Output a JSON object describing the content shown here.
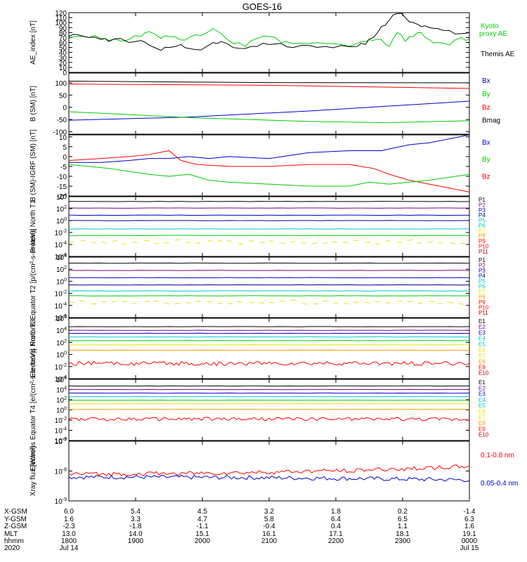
{
  "title": "GOES-16",
  "colors": {
    "black": "#000000",
    "red": "#ff0000",
    "green": "#00cc00",
    "blue": "#0000cc",
    "cyan": "#00c8c8",
    "orange": "#ff9900",
    "yellow": "#e6e600",
    "navy": "#000099",
    "purple": "#800080",
    "darkred": "#b00000"
  },
  "chart_data": [
    {
      "type": "line",
      "name": "ae_index",
      "ylabel": "AE_index [nT]",
      "ylim": [
        0,
        120
      ],
      "yticks": [
        "0",
        "10",
        "20",
        "30",
        "40",
        "50",
        "60",
        "70",
        "80",
        "90",
        "100",
        "110",
        "120"
      ],
      "legend": [
        {
          "label": "Kyoto",
          "color": "#00cc00"
        },
        {
          "label": "proxy AE",
          "color": "#00cc00"
        },
        {
          "label": "Themis AE",
          "color": "#000000"
        }
      ],
      "series": [
        {
          "name": "Kyoto proxy AE",
          "color": "#00cc00",
          "x": [
            0.0,
            0.02,
            0.05,
            0.08,
            0.1,
            0.13,
            0.15,
            0.18,
            0.2,
            0.23,
            0.25,
            0.28,
            0.3,
            0.33,
            0.36,
            0.38,
            0.41,
            0.44,
            0.47,
            0.5,
            0.53,
            0.56,
            0.6,
            0.64,
            0.68,
            0.72,
            0.74,
            0.76,
            0.78,
            0.8,
            0.82,
            0.84,
            0.86,
            0.88,
            0.9,
            0.92,
            0.95,
            0.98,
            1.0
          ],
          "y": [
            68,
            72,
            70,
            68,
            64,
            63,
            66,
            72,
            82,
            68,
            72,
            65,
            70,
            74,
            88,
            78,
            58,
            52,
            68,
            72,
            60,
            58,
            58,
            58,
            56,
            58,
            62,
            64,
            66,
            52,
            80,
            62,
            72,
            80,
            66,
            60,
            55,
            70,
            66
          ]
        },
        {
          "name": "Themis AE",
          "color": "#000000",
          "x": [
            0.0,
            0.02,
            0.05,
            0.08,
            0.1,
            0.13,
            0.15,
            0.18,
            0.2,
            0.23,
            0.25,
            0.28,
            0.3,
            0.33,
            0.36,
            0.38,
            0.41,
            0.44,
            0.47,
            0.5,
            0.53,
            0.56,
            0.6,
            0.64,
            0.68,
            0.72,
            0.74,
            0.76,
            0.78,
            0.8,
            0.82,
            0.84,
            0.86,
            0.88,
            0.9,
            0.92,
            0.95,
            0.98,
            1.0
          ],
          "y": [
            72,
            76,
            70,
            66,
            62,
            68,
            60,
            64,
            55,
            44,
            50,
            56,
            48,
            45,
            60,
            62,
            50,
            48,
            52,
            56,
            58,
            50,
            54,
            52,
            54,
            52,
            56,
            70,
            92,
            105,
            118,
            110,
            100,
            92,
            90,
            88,
            84,
            78,
            80
          ]
        }
      ]
    },
    {
      "type": "line",
      "name": "b_sm",
      "ylabel": "B (SM) [nT]",
      "ylim": [
        -110,
        140
      ],
      "yticks": [
        "-100",
        "-50",
        "0",
        "50",
        "100"
      ],
      "ytick_values": [
        -100,
        -50,
        0,
        50,
        100
      ],
      "legend": [
        {
          "label": "Bx",
          "color": "#0000cc"
        },
        {
          "label": "By",
          "color": "#00cc00"
        },
        {
          "label": "Bz",
          "color": "#ff0000"
        },
        {
          "label": "Bmag",
          "color": "#000000"
        }
      ],
      "series": [
        {
          "name": "Bmag",
          "color": "#000000",
          "x": [
            0,
            0.5,
            1
          ],
          "y": [
            107,
            101,
            100
          ]
        },
        {
          "name": "Bz",
          "color": "#ff0000",
          "x": [
            0,
            0.5,
            1
          ],
          "y": [
            95,
            90,
            77
          ]
        },
        {
          "name": "Bx",
          "color": "#0000cc",
          "x": [
            0,
            0.3,
            0.6,
            1
          ],
          "y": [
            -53,
            -40,
            -15,
            25
          ]
        },
        {
          "name": "By",
          "color": "#00cc00",
          "x": [
            0,
            0.3,
            0.6,
            0.8,
            1
          ],
          "y": [
            -18,
            -42,
            -58,
            -63,
            -55
          ]
        }
      ]
    },
    {
      "type": "line",
      "name": "b_sm_minus_igrf",
      "ylabel": "B (SM)-IGRF (SM) [nT]",
      "ylim": [
        -20,
        11
      ],
      "yticks": [
        "-20",
        "-15",
        "-10",
        "-5",
        "0",
        "5",
        "10"
      ],
      "ytick_values": [
        -20,
        -15,
        -10,
        -5,
        0,
        5,
        10
      ],
      "legend": [
        {
          "label": "Bx",
          "color": "#0000cc"
        },
        {
          "label": "By",
          "color": "#00cc00"
        },
        {
          "label": "Bz",
          "color": "#ff0000"
        }
      ],
      "series": [
        {
          "name": "Bx",
          "color": "#0000cc",
          "x": [
            0,
            0.08,
            0.15,
            0.2,
            0.25,
            0.3,
            0.35,
            0.4,
            0.5,
            0.6,
            0.7,
            0.78,
            0.85,
            0.9,
            0.95,
            1.0
          ],
          "y": [
            -3,
            -3,
            -2,
            -1,
            -1,
            0,
            -1,
            0,
            -1,
            2,
            3,
            3,
            6,
            7,
            9,
            11
          ]
        },
        {
          "name": "Bz",
          "color": "#ff0000",
          "x": [
            0,
            0.08,
            0.15,
            0.2,
            0.25,
            0.28,
            0.32,
            0.4,
            0.5,
            0.6,
            0.7,
            0.76,
            0.8,
            0.85,
            0.9,
            0.95,
            1.0
          ],
          "y": [
            -2,
            -1,
            0,
            1,
            3,
            -2,
            -4,
            -5,
            -5,
            -4,
            -4,
            -6,
            -9,
            -12,
            -14,
            -16,
            -18
          ]
        },
        {
          "name": "By",
          "color": "#00cc00",
          "x": [
            0,
            0.1,
            0.2,
            0.25,
            0.3,
            0.35,
            0.4,
            0.5,
            0.6,
            0.7,
            0.75,
            0.8,
            0.9,
            1.0
          ],
          "y": [
            -4,
            -6,
            -9,
            -10,
            -9,
            -12,
            -13,
            -14,
            -15,
            -15,
            -13,
            -14,
            -12,
            -9
          ]
        }
      ]
    },
    {
      "type": "line",
      "name": "protons_north_t1",
      "ylabel": "Protons North T1",
      "yscale": "log",
      "ylim": [
        -6,
        4
      ],
      "yticks": [
        "10^-6",
        "10^-4",
        "10^-2",
        "10^0",
        "10^2",
        "10^4"
      ],
      "legend": [
        {
          "label": "P1",
          "color": "#000000"
        },
        {
          "label": "P2",
          "color": "#800080"
        },
        {
          "label": "P3",
          "color": "#0000cc"
        },
        {
          "label": "P4",
          "color": "#000099"
        },
        {
          "label": "P5",
          "color": "#00c8c8"
        },
        {
          "label": "P6",
          "color": "#00c8c8"
        },
        {
          "label": "P7",
          "color": "#e6e600"
        },
        {
          "label": "P8",
          "color": "#ff9900"
        },
        {
          "label": "P9",
          "color": "#ff0000"
        },
        {
          "label": "P10",
          "color": "#ff0000"
        },
        {
          "label": "P11",
          "color": "#b00000"
        }
      ],
      "levels": [
        {
          "label": "P1",
          "color": "#000000",
          "log": 3.2
        },
        {
          "label": "P2",
          "color": "#800080",
          "log": 2.1
        },
        {
          "label": "P3",
          "color": "#0000cc",
          "log": 0.9
        },
        {
          "label": "P4",
          "color": "#000099",
          "log": 0.0
        },
        {
          "label": "P5",
          "color": "#00c8c8",
          "log": -1.4
        },
        {
          "label": "P6",
          "color": "#00cc00",
          "log": -2.5
        },
        {
          "label": "P7",
          "color": "#e6e600",
          "log": -3.6,
          "sparse": true
        }
      ]
    },
    {
      "type": "line",
      "name": "protons_equator_t2",
      "ylabel": "Protons Equator T2 [p/(cm²-s-sr-keV)]",
      "yscale": "log",
      "ylim": [
        -6,
        4
      ],
      "yticks": [
        "10^-6",
        "10^-4",
        "10^-2",
        "10^0",
        "10^2",
        "10^4"
      ],
      "legend": [
        {
          "label": "P1",
          "color": "#000000"
        },
        {
          "label": "P2",
          "color": "#800080"
        },
        {
          "label": "P3",
          "color": "#0000cc"
        },
        {
          "label": "P4",
          "color": "#000099"
        },
        {
          "label": "P5",
          "color": "#00c8c8"
        },
        {
          "label": "P6",
          "color": "#00c8c8"
        },
        {
          "label": "P7",
          "color": "#e6e600"
        },
        {
          "label": "P8",
          "color": "#ff9900"
        },
        {
          "label": "P9",
          "color": "#ff0000"
        },
        {
          "label": "P10",
          "color": "#ff0000"
        },
        {
          "label": "P11",
          "color": "#b00000"
        }
      ],
      "levels": [
        {
          "label": "P1",
          "color": "#000000",
          "log": 3.0
        },
        {
          "label": "P2",
          "color": "#800080",
          "log": 1.8
        },
        {
          "label": "P3",
          "color": "#0000cc",
          "log": 0.6
        },
        {
          "label": "P4",
          "color": "#000099",
          "log": -0.6
        },
        {
          "label": "P5",
          "color": "#00c8c8",
          "log": -1.6
        },
        {
          "label": "P6",
          "color": "#00cc00",
          "log": -2.4
        },
        {
          "label": "P7",
          "color": "#e6e600",
          "log": -3.5,
          "sparse": true
        }
      ]
    },
    {
      "type": "line",
      "name": "electrons_north_t3",
      "ylabel": "Electrons North T3",
      "yscale": "log",
      "ylim": [
        -4,
        6
      ],
      "yticks": [
        "10^-4",
        "10^-2",
        "10^0",
        "10^2",
        "10^4",
        "10^6"
      ],
      "legend": [
        {
          "label": "E1",
          "color": "#000000"
        },
        {
          "label": "E2",
          "color": "#800080"
        },
        {
          "label": "E3",
          "color": "#0000cc"
        },
        {
          "label": "E4",
          "color": "#00c8c8"
        },
        {
          "label": "E5",
          "color": "#00c8c8"
        },
        {
          "label": "E6",
          "color": "#e6e600"
        },
        {
          "label": "E7",
          "color": "#e6e600"
        },
        {
          "label": "E8",
          "color": "#ff9900"
        },
        {
          "label": "E9",
          "color": "#ff0000"
        },
        {
          "label": "E10",
          "color": "#b00000"
        }
      ],
      "levels": [
        {
          "label": "E1",
          "color": "#000000",
          "log": 4.6
        },
        {
          "label": "E2",
          "color": "#800080",
          "log": 4.0
        },
        {
          "label": "E3",
          "color": "#0000cc",
          "log": 3.5
        },
        {
          "label": "E4",
          "color": "#00c8c8",
          "log": 2.9
        },
        {
          "label": "E5",
          "color": "#00cc00",
          "log": 2.3
        },
        {
          "label": "E6",
          "color": "#e6e600",
          "log": 1.6
        },
        {
          "label": "E7",
          "color": "#ff9900",
          "log": 0.7
        },
        {
          "label": "E8",
          "color": "#ff0000",
          "log": -1.5,
          "noisy": true
        }
      ]
    },
    {
      "type": "line",
      "name": "electrons_equator_t4",
      "ylabel": "Electrons Equator T4 [e/(cm²-s-sr-keV)]",
      "yscale": "log",
      "ylim": [
        -6,
        6
      ],
      "yticks": [
        "10^-6",
        "10^-4",
        "10^-2",
        "10^0",
        "10^2",
        "10^4",
        "10^6"
      ],
      "legend": [
        {
          "label": "E1",
          "color": "#000000"
        },
        {
          "label": "E2",
          "color": "#800080"
        },
        {
          "label": "E3",
          "color": "#0000cc"
        },
        {
          "label": "E4",
          "color": "#00c8c8"
        },
        {
          "label": "E5",
          "color": "#00c8c8"
        },
        {
          "label": "E6",
          "color": "#e6e600"
        },
        {
          "label": "E7",
          "color": "#e6e600"
        },
        {
          "label": "E8",
          "color": "#ff9900"
        },
        {
          "label": "E9",
          "color": "#ff0000"
        },
        {
          "label": "E10",
          "color": "#b00000"
        }
      ],
      "levels": [
        {
          "label": "E1",
          "color": "#000000",
          "log": 4.7
        },
        {
          "label": "E2",
          "color": "#800080",
          "log": 4.0
        },
        {
          "label": "E3",
          "color": "#0000cc",
          "log": 3.3
        },
        {
          "label": "E4",
          "color": "#00c8c8",
          "log": 2.6
        },
        {
          "label": "E5",
          "color": "#00cc00",
          "log": 1.9
        },
        {
          "label": "E6",
          "color": "#e6e600",
          "log": 1.2
        },
        {
          "label": "E7",
          "color": "#ff9900",
          "log": 0.1
        },
        {
          "label": "E8",
          "color": "#ff0000",
          "log": -1.8,
          "noisy": true
        }
      ]
    },
    {
      "type": "line",
      "name": "xray_flux",
      "ylabel": "Xray flux [W/m²]",
      "yscale": "log",
      "ylim": [
        -9,
        -7
      ],
      "yticks": [
        "10^-9",
        "10^-8",
        "10^-7"
      ],
      "legend": [
        {
          "label": "0.1-0.8 nm",
          "color": "#ff0000"
        },
        {
          "label": "0.05-0.4 nm",
          "color": "#0000cc"
        }
      ],
      "levels": [
        {
          "label": "0.1-0.8 nm",
          "color": "#ff0000",
          "log": -8.1,
          "noisy": true,
          "rise": 0.25
        },
        {
          "label": "0.05-0.4 nm",
          "color": "#0000cc",
          "log": -8.2,
          "noisy": true,
          "rise": -0.1
        }
      ]
    }
  ],
  "xaxis": {
    "row_labels": [
      "X-GSM",
      "Y-GSM",
      "Z-GSM",
      "MLT",
      "hhmm",
      "2020"
    ],
    "columns": [
      [
        "6.0",
        "1.6",
        "-2.3",
        "13.0",
        "1800",
        "Jul 14"
      ],
      [
        "5.4",
        "3.3",
        "-1.8",
        "14.0",
        "1900",
        ""
      ],
      [
        "4.5",
        "4.7",
        "-1.1",
        "15.1",
        "2000",
        ""
      ],
      [
        "3.2",
        "5.8",
        "-0.4",
        "16.1",
        "2100",
        ""
      ],
      [
        "1.8",
        "6.4",
        "0.4",
        "17.1",
        "2200",
        ""
      ],
      [
        "0.2",
        "6.5",
        "1.1",
        "18.1",
        "2300",
        ""
      ],
      [
        "-1.4",
        "6.3",
        "1.6",
        "19.1",
        "0000",
        "Jul 15"
      ]
    ]
  }
}
